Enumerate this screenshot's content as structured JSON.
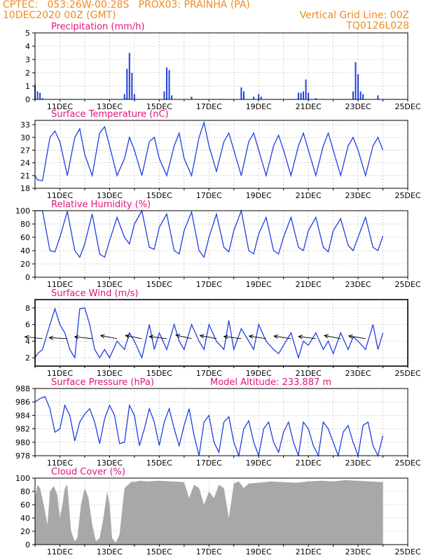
{
  "header": {
    "line1_left": "CPTEC:   053:26W-00:28S   PROX03: PRAINHA (PA)",
    "line2_left": "10DEC2020 00Z (GMT)",
    "line2_right": "Vertical Grid Line: 00Z",
    "line3_right": "TQ0126L028"
  },
  "x_axis": {
    "tick_labels": [
      "11DEC",
      "13DEC",
      "15DEC",
      "17DEC",
      "19DEC",
      "21DEC",
      "23DEC",
      "25DEC"
    ],
    "start": "10DEC2020 00Z",
    "end": "25DEC2020 00Z"
  },
  "colors": {
    "series": "#1f3fe0",
    "cloud": "#a8a8a8",
    "title": "#e0147a",
    "header": "#f08a1c",
    "wind_arrow": "#000000"
  },
  "chart_data": [
    {
      "id": "precip",
      "type": "bar",
      "title": "Precipitation (mm/h)",
      "ylim": [
        0,
        5
      ],
      "yticks": [
        0,
        1,
        2,
        3,
        4,
        5
      ],
      "x_unit": "days since 10DEC2020 00Z",
      "x": [
        0.0,
        0.1,
        0.2,
        0.3,
        3.6,
        3.7,
        3.8,
        3.9,
        4.0,
        5.2,
        5.3,
        5.4,
        5.5,
        6.3,
        8.3,
        8.4,
        8.8,
        9.0,
        9.1,
        10.6,
        10.7,
        10.8,
        10.9,
        11.0,
        11.3,
        12.8,
        12.9,
        13.0,
        13.1,
        13.2,
        13.8
      ],
      "values": [
        1.1,
        0.6,
        0.5,
        0.1,
        0.4,
        2.3,
        3.5,
        2.0,
        0.4,
        0.6,
        2.4,
        2.2,
        0.3,
        0.2,
        0.9,
        0.6,
        0.2,
        0.4,
        0.2,
        0.5,
        0.5,
        0.6,
        1.5,
        0.5,
        0.1,
        0.6,
        2.8,
        1.9,
        0.6,
        0.4,
        0.3
      ]
    },
    {
      "id": "temp",
      "type": "line",
      "title": "Surface Temperature (nC)",
      "ylim": [
        18,
        34
      ],
      "yticks": [
        18,
        21,
        24,
        27,
        30,
        33
      ],
      "x_unit": "days since 10DEC2020 00Z",
      "series": [
        {
          "name": "",
          "x": [
            0.0,
            0.1,
            0.3,
            0.6,
            0.8,
            1.0,
            1.3,
            1.6,
            1.8,
            2.0,
            2.3,
            2.6,
            2.8,
            3.0,
            3.3,
            3.6,
            3.8,
            4.0,
            4.3,
            4.6,
            4.8,
            5.0,
            5.3,
            5.6,
            5.8,
            6.0,
            6.3,
            6.6,
            6.8,
            7.0,
            7.3,
            7.6,
            7.8,
            8.0,
            8.3,
            8.6,
            8.8,
            9.0,
            9.3,
            9.6,
            9.8,
            10.0,
            10.3,
            10.6,
            10.8,
            11.0,
            11.3,
            11.6,
            11.8,
            12.0,
            12.3,
            12.6,
            12.8,
            13.0,
            13.3,
            13.6,
            13.8,
            14.0
          ],
          "values": [
            21,
            20,
            19.8,
            30,
            31.5,
            29,
            21,
            30,
            32,
            26,
            21,
            31,
            32.5,
            28,
            21,
            25,
            30,
            27,
            21,
            29,
            30,
            25,
            21,
            28,
            31,
            25,
            21,
            30,
            33.5,
            28,
            22,
            29,
            31,
            27,
            21,
            29,
            31,
            27,
            21,
            28,
            30.5,
            27,
            21,
            28,
            31,
            27,
            21,
            28,
            31,
            27,
            21,
            28,
            30,
            27,
            21,
            28,
            30,
            27
          ]
        }
      ]
    },
    {
      "id": "rh",
      "type": "line",
      "title": "Relative Humidity (%)",
      "ylim": [
        0,
        100
      ],
      "yticks": [
        0,
        20,
        40,
        60,
        80,
        100
      ],
      "x_unit": "days since 10DEC2020 00Z",
      "series": [
        {
          "name": "",
          "x": [
            0.0,
            0.3,
            0.6,
            0.8,
            1.0,
            1.3,
            1.6,
            1.8,
            2.0,
            2.3,
            2.6,
            2.8,
            3.0,
            3.3,
            3.6,
            3.8,
            4.0,
            4.3,
            4.6,
            4.8,
            5.0,
            5.3,
            5.6,
            5.8,
            6.0,
            6.3,
            6.6,
            6.8,
            7.0,
            7.3,
            7.6,
            7.8,
            8.0,
            8.3,
            8.6,
            8.8,
            9.0,
            9.3,
            9.6,
            9.8,
            10.0,
            10.3,
            10.6,
            10.8,
            11.0,
            11.3,
            11.6,
            11.8,
            12.0,
            12.3,
            12.6,
            12.8,
            13.0,
            13.3,
            13.6,
            13.8,
            14.0
          ],
          "values": [
            100,
            100,
            40,
            38,
            60,
            99,
            40,
            30,
            50,
            95,
            35,
            30,
            55,
            90,
            60,
            50,
            80,
            100,
            45,
            42,
            75,
            95,
            40,
            35,
            70,
            98,
            40,
            30,
            60,
            95,
            45,
            38,
            70,
            100,
            40,
            35,
            65,
            90,
            40,
            35,
            60,
            90,
            45,
            40,
            70,
            90,
            45,
            38,
            70,
            88,
            48,
            40,
            60,
            90,
            45,
            40,
            62
          ]
        }
      ]
    },
    {
      "id": "wind",
      "type": "line",
      "title": "Surface Wind (m/s)",
      "ylim": [
        1,
        9
      ],
      "yticks": [
        2,
        4,
        6,
        8
      ],
      "x_unit": "days since 10DEC2020 00Z",
      "series": [
        {
          "name": "",
          "x": [
            0.0,
            0.1,
            0.3,
            0.5,
            0.6,
            0.8,
            1.0,
            1.2,
            1.4,
            1.6,
            1.8,
            2.0,
            2.2,
            2.4,
            2.6,
            2.8,
            3.0,
            3.3,
            3.6,
            3.8,
            4.0,
            4.3,
            4.6,
            4.8,
            5.0,
            5.3,
            5.6,
            5.8,
            6.0,
            6.3,
            6.6,
            6.8,
            7.0,
            7.3,
            7.6,
            7.8,
            8.0,
            8.3,
            8.6,
            8.8,
            9.0,
            9.3,
            9.6,
            9.8,
            10.0,
            10.3,
            10.6,
            10.8,
            11.0,
            11.3,
            11.6,
            11.8,
            12.0,
            12.3,
            12.6,
            12.8,
            13.0,
            13.3,
            13.6,
            13.8,
            14.0
          ],
          "values": [
            2,
            2.5,
            3,
            5,
            6,
            7.9,
            6,
            5,
            3,
            2,
            7.9,
            8,
            6,
            3,
            2,
            3,
            2,
            4,
            3,
            5,
            4,
            2,
            6,
            3,
            5,
            3,
            6,
            4,
            3,
            6,
            4,
            3,
            6,
            4,
            3,
            6.5,
            3,
            5.5,
            4,
            3,
            6,
            4,
            3,
            2.5,
            3.5,
            5,
            2,
            4,
            3.5,
            5,
            3,
            4,
            2.5,
            5,
            3,
            4.5,
            4,
            3,
            6,
            3,
            5
          ]
        }
      ],
      "wind_arrows": {
        "x": [
          0.3,
          1.3,
          2.3,
          3.3,
          4.3,
          5.3,
          6.3,
          7.3,
          8.3,
          9.3,
          10.3,
          11.3,
          12.3,
          13.3
        ],
        "speed": [
          4.3,
          4.3,
          4.3,
          4.3,
          4.3,
          4.3,
          4.3,
          4.3,
          4.3,
          4.3,
          4.3,
          4.3,
          4.3,
          4.3
        ],
        "u": [
          -7,
          -7,
          -7,
          -6,
          -6,
          -6,
          -5,
          -6,
          -6,
          -5,
          -5,
          -6,
          -6,
          -7
        ],
        "v": [
          -2,
          -1,
          -2,
          -3,
          -3,
          -2,
          -3,
          -3,
          -2,
          -2,
          -2,
          -2,
          -3,
          -3
        ]
      }
    },
    {
      "id": "pressure",
      "type": "line",
      "title": "Surface Pressure (hPa)",
      "annotation": "Model Altitude: 233.887 m",
      "ylim": [
        978,
        988
      ],
      "yticks": [
        978,
        980,
        982,
        984,
        986,
        988
      ],
      "x_unit": "days since 10DEC2020 00Z",
      "series": [
        {
          "name": "",
          "x": [
            0.0,
            0.2,
            0.4,
            0.6,
            0.8,
            1.0,
            1.2,
            1.4,
            1.6,
            1.8,
            2.0,
            2.2,
            2.4,
            2.6,
            2.8,
            3.0,
            3.2,
            3.4,
            3.6,
            3.8,
            4.0,
            4.2,
            4.4,
            4.6,
            4.8,
            5.0,
            5.2,
            5.4,
            5.6,
            5.8,
            6.0,
            6.2,
            6.4,
            6.6,
            6.8,
            7.0,
            7.2,
            7.4,
            7.6,
            7.8,
            8.0,
            8.2,
            8.4,
            8.6,
            8.8,
            9.0,
            9.2,
            9.4,
            9.6,
            9.8,
            10.0,
            10.2,
            10.4,
            10.6,
            10.8,
            11.0,
            11.2,
            11.4,
            11.6,
            11.8,
            12.0,
            12.2,
            12.4,
            12.6,
            12.8,
            13.0,
            13.2,
            13.4,
            13.6,
            13.8,
            14.0
          ],
          "values": [
            986,
            986.5,
            986.8,
            985,
            981.5,
            982,
            985.5,
            984,
            980.2,
            983,
            984.2,
            985,
            983,
            979.8,
            983.5,
            985.5,
            984,
            979.8,
            980,
            985.5,
            984,
            979.5,
            982,
            985,
            983,
            979.5,
            983,
            985,
            982,
            979.5,
            982.5,
            985,
            981,
            978,
            983,
            984,
            980,
            978.5,
            983,
            983.8,
            980,
            978,
            982,
            983.2,
            980,
            978,
            982,
            983,
            980,
            978.5,
            981.5,
            983,
            980,
            978,
            983,
            982,
            979.5,
            978,
            983,
            982,
            980,
            978,
            981.5,
            982.5,
            980,
            978,
            982.5,
            983,
            979.5,
            978,
            981
          ]
        }
      ]
    },
    {
      "id": "cloud",
      "type": "area",
      "title": "Cloud Cover (%)",
      "ylim": [
        0,
        100
      ],
      "yticks": [
        0,
        20,
        40,
        60,
        80,
        100
      ],
      "x_unit": "days since 10DEC2020 00Z",
      "series": [
        {
          "name": "",
          "x": [
            0.0,
            0.1,
            0.2,
            0.35,
            0.5,
            0.6,
            0.75,
            0.9,
            1.0,
            1.1,
            1.2,
            1.3,
            1.45,
            1.6,
            1.7,
            1.85,
            2.0,
            2.15,
            2.3,
            2.45,
            2.6,
            2.75,
            2.9,
            3.0,
            3.1,
            3.25,
            3.4,
            3.5,
            3.6,
            3.75,
            3.9,
            4.0,
            4.2,
            4.5,
            5.0,
            5.5,
            6.0,
            6.2,
            6.4,
            6.6,
            6.8,
            7.0,
            7.2,
            7.4,
            7.6,
            7.8,
            8.0,
            8.2,
            8.4,
            8.6,
            9.0,
            9.5,
            10.0,
            10.5,
            11.0,
            11.5,
            12.0,
            12.5,
            13.0,
            13.5,
            14.0
          ],
          "values": [
            70,
            90,
            85,
            60,
            30,
            80,
            88,
            75,
            40,
            60,
            85,
            90,
            20,
            5,
            10,
            60,
            85,
            70,
            30,
            5,
            10,
            40,
            80,
            60,
            10,
            3,
            15,
            50,
            85,
            90,
            95,
            94,
            96,
            95,
            96,
            95,
            94,
            70,
            90,
            85,
            60,
            80,
            70,
            90,
            85,
            40,
            92,
            95,
            85,
            92,
            93,
            95,
            94,
            93,
            95,
            96,
            95,
            97,
            96,
            95,
            94
          ]
        }
      ]
    }
  ]
}
